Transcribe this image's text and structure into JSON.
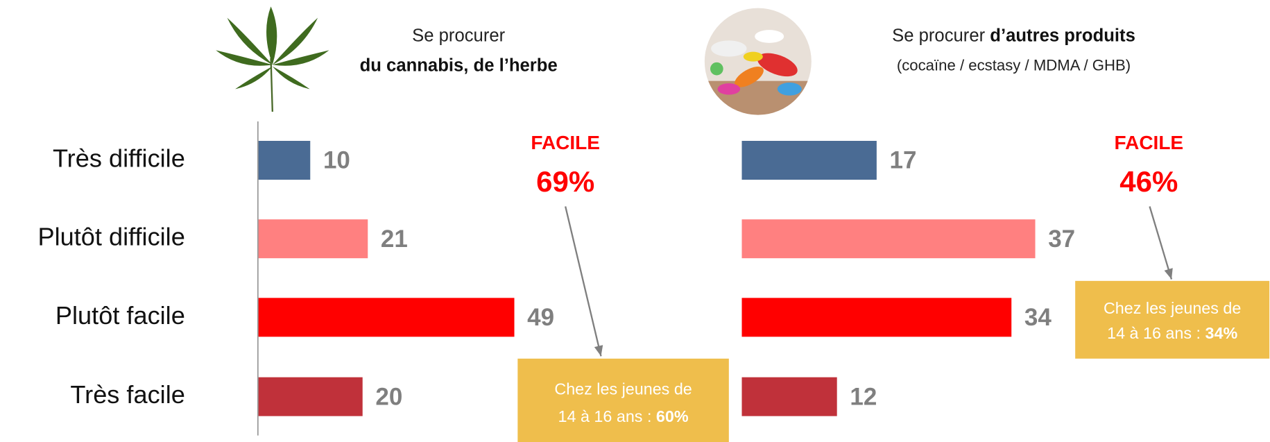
{
  "chart_data": [
    {
      "type": "bar",
      "orientation": "horizontal",
      "title": "Se procurer",
      "title_bold": "du cannabis, de l’herbe",
      "categories": [
        "Très difficile",
        "Plutôt difficile",
        "Plutôt facile",
        "Très facile"
      ],
      "values": [
        10,
        21,
        49,
        20
      ],
      "colors": [
        "#4a6b94",
        "#ff8080",
        "#ff0000",
        "#c0313a"
      ],
      "xlim": [
        0,
        60
      ],
      "highlight_label": "FACILE",
      "highlight_value": "69%",
      "note_text_1": "Chez les jeunes de",
      "note_text_2": "14 à 16 ans :",
      "note_value": "60%"
    },
    {
      "type": "bar",
      "orientation": "horizontal",
      "title": "Se procurer",
      "title_bold": "d’autres produits",
      "subtitle": "(cocaïne / ecstasy / MDMA / GHB)",
      "categories": [
        "Très difficile",
        "Plutôt difficile",
        "Plutôt facile",
        "Très facile"
      ],
      "values": [
        17,
        37,
        34,
        12
      ],
      "colors": [
        "#4a6b94",
        "#ff8080",
        "#ff0000",
        "#c0313a"
      ],
      "xlim": [
        0,
        40
      ],
      "highlight_label": "FACILE",
      "highlight_value": "46%",
      "note_text_1": "Chez les jeunes de",
      "note_text_2": "14 à 16 ans :",
      "note_value": "34%"
    }
  ]
}
